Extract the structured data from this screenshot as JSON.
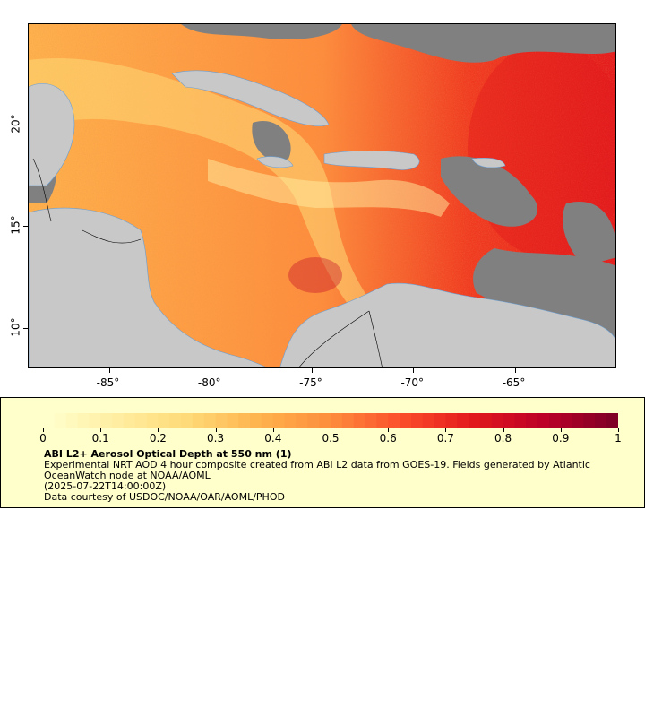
{
  "map": {
    "lon_ticks": [
      "-85°",
      "-80°",
      "-75°",
      "-70°",
      "-65°"
    ],
    "lat_ticks": [
      "20°",
      "15°",
      "10°"
    ],
    "lon_values": [
      -85,
      -80,
      -75,
      -70,
      -65
    ],
    "lat_values": [
      20,
      15,
      10
    ],
    "lon_range": [
      -89,
      -60
    ],
    "lat_range": [
      8,
      25
    ],
    "colors": {
      "land": "#c8c8c8",
      "nodata": "#808080",
      "rivers": "#6a9fd4",
      "borders": "#000000"
    }
  },
  "colorbar": {
    "labels": [
      "0",
      "0.1",
      "0.2",
      "0.3",
      "0.4",
      "0.5",
      "0.6",
      "0.7",
      "0.8",
      "0.9",
      "1"
    ],
    "range": [
      0,
      1
    ],
    "colors": [
      "#ffffcc",
      "#ffeda0",
      "#fed976",
      "#feb24c",
      "#fd8d3c",
      "#fc4e2a",
      "#e31a1c",
      "#bd0026",
      "#800026"
    ]
  },
  "legend": {
    "title": "ABI L2+ Aerosol Optical Depth at 550 nm (1)",
    "line1": "Experimental NRT AOD 4 hour composite created from ABI L2 data from GOES-19. Fields generated by Atlantic OceanWatch node at NOAA/AOML",
    "line2": "(2025-07-22T14:00:00Z)",
    "line3": "Data courtesy of USDOC/NOAA/OAR/AOML/PHOD"
  }
}
